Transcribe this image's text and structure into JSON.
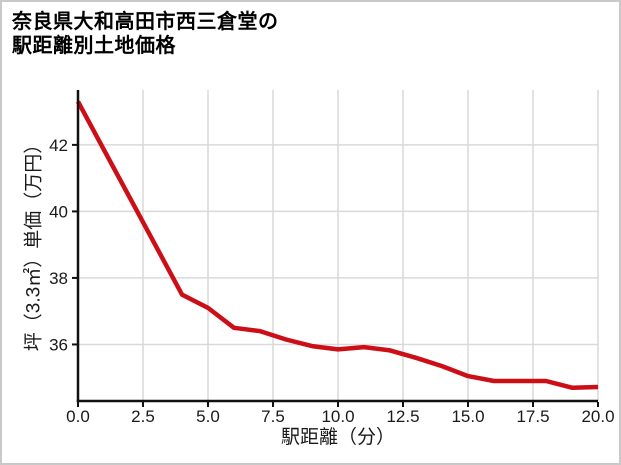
{
  "title": {
    "line1": "奈良県大和高田市西三倉堂の",
    "line2": "駅距離別土地価格"
  },
  "chart_data": {
    "type": "line",
    "title": "奈良県大和高田市西三倉堂の駅距離別土地価格",
    "xlabel": "駅距離（分）",
    "ylabel": "坪（3.3㎡）単価（万円）",
    "x": [
      0,
      1,
      2,
      3,
      4,
      5,
      6,
      7,
      8,
      9,
      10,
      11,
      12,
      13,
      14,
      15,
      16,
      17,
      18,
      19,
      20
    ],
    "y": [
      43.3,
      41.85,
      40.4,
      38.95,
      37.5,
      37.1,
      36.5,
      36.4,
      36.15,
      35.95,
      35.85,
      35.92,
      35.82,
      35.6,
      35.35,
      35.05,
      34.9,
      34.9,
      34.9,
      34.7,
      34.72
    ],
    "xlim": [
      0,
      20
    ],
    "ylim": [
      34.3,
      43.65
    ],
    "xticks": [
      0,
      2.5,
      5,
      7.5,
      10,
      12.5,
      15,
      17.5,
      20
    ],
    "xtick_labels": [
      "0.0",
      "2.5",
      "5.0",
      "7.5",
      "10.0",
      "12.5",
      "15.0",
      "17.5",
      "20.0"
    ],
    "yticks": [
      36,
      38,
      40,
      42
    ],
    "ytick_labels": [
      "36",
      "38",
      "40",
      "42"
    ],
    "grid": true,
    "legend": "none",
    "line_color": "#cc0e17",
    "line_width": 4.5,
    "grid_color": "#d9d9d9",
    "spine_color": "#111111",
    "background": "#ffffff",
    "border_color": "#c9c9c9"
  }
}
